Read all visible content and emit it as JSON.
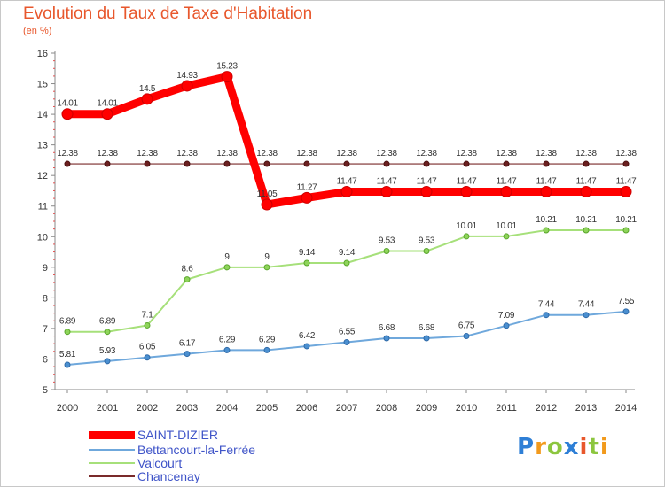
{
  "header": {
    "title": "Evolution du Taux de Taxe d'Habitation",
    "subtitle": "(en %)"
  },
  "chart_data": {
    "type": "line",
    "title": "Evolution du Taux de Taxe d'Habitation",
    "ylabel": "(en %)",
    "xlabel": "",
    "ylim": [
      5,
      16
    ],
    "yticks": [
      "5",
      "6",
      "7",
      "8",
      "9",
      "10",
      "11",
      "12",
      "13",
      "14",
      "15",
      "16"
    ],
    "grid": false,
    "legend_position": "bottom-left",
    "categories": [
      "2000",
      "2001",
      "2002",
      "2003",
      "2004",
      "2005",
      "2006",
      "2007",
      "2008",
      "2009",
      "2010",
      "2011",
      "2012",
      "2013",
      "2014"
    ],
    "series": [
      {
        "name": "SAINT-DIZIER",
        "color": "#ff0000",
        "values": [
          14.01,
          14.01,
          14.5,
          14.93,
          15.23,
          11.05,
          11.27,
          11.47,
          11.47,
          11.47,
          11.47,
          11.47,
          11.47,
          11.47,
          11.47
        ],
        "labels": [
          "14.01",
          "14.01",
          "14.5",
          "14.93",
          "15.23",
          "11.05",
          "11.27",
          "11.47",
          "11.47",
          "11.47",
          "11.47",
          "11.47",
          "11.47",
          "11.47",
          "11.47"
        ]
      },
      {
        "name": "Bettancourt-la-Ferrée",
        "color": "#6fa8dc",
        "values": [
          5.81,
          5.93,
          6.05,
          6.17,
          6.29,
          6.29,
          6.42,
          6.55,
          6.68,
          6.68,
          6.75,
          7.09,
          7.44,
          7.44,
          7.55
        ],
        "labels": [
          "5.81",
          "5.93",
          "6.05",
          "6.17",
          "6.29",
          "6.29",
          "6.42",
          "6.55",
          "6.68",
          "6.68",
          "6.75",
          "7.09",
          "7.44",
          "7.44",
          "7.55"
        ]
      },
      {
        "name": "Valcourt",
        "color": "#a6e07a",
        "values": [
          6.89,
          6.89,
          7.1,
          8.6,
          9,
          9,
          9.14,
          9.14,
          9.53,
          9.53,
          10.01,
          10.01,
          10.21,
          10.21,
          10.21
        ],
        "labels": [
          "6.89",
          "6.89",
          "7.1",
          "8.6",
          "9",
          "9",
          "9.14",
          "9.14",
          "9.53",
          "9.53",
          "10.01",
          "10.01",
          "10.21",
          "10.21",
          "10.21"
        ]
      },
      {
        "name": "Chancenay",
        "color": "#7a2a2a",
        "values": [
          12.38,
          12.38,
          12.38,
          12.38,
          12.38,
          12.38,
          12.38,
          12.38,
          12.38,
          12.38,
          12.38,
          12.38,
          12.38,
          12.38,
          12.38
        ],
        "labels": [
          "12.38",
          "12.38",
          "12.38",
          "12.38",
          "12.38",
          "12.38",
          "12.38",
          "12.38",
          "12.38",
          "12.38",
          "12.38",
          "12.38",
          "12.38",
          "12.38",
          "12.38"
        ]
      }
    ]
  },
  "legend": {
    "items": [
      {
        "label": "SAINT-DIZIER",
        "color": "#ff0000"
      },
      {
        "label": "Bettancourt-la-Ferrée",
        "color": "#6fa8dc"
      },
      {
        "label": "Valcourt",
        "color": "#a6e07a"
      },
      {
        "label": "Chancenay",
        "color": "#7a2a2a"
      }
    ]
  },
  "logo": {
    "letters": [
      "P",
      "r",
      "o",
      "x",
      "i",
      "t",
      "i"
    ],
    "colors": [
      "#2e7fd6",
      "#f29a1c",
      "#8cc63f",
      "#2e7fd6",
      "#e8572c",
      "#8cc63f",
      "#f29a1c"
    ]
  }
}
